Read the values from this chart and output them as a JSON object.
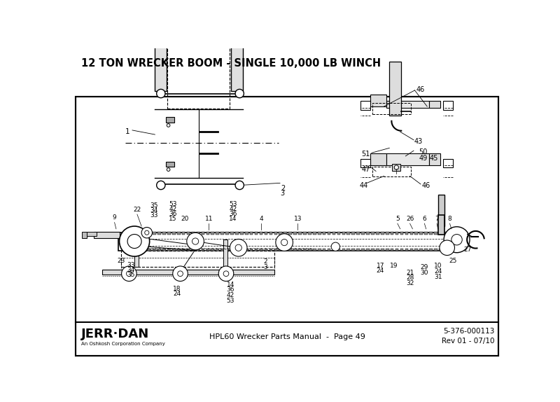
{
  "title": "12 TON WRECKER BOOM - SINGLE 10,000 LB WINCH",
  "bg_color": "#ffffff",
  "footer_center": "HPL60 Wrecker Parts Manual  -  Page 49",
  "footer_right_line1": "5-376-000113",
  "footer_right_line2": "Rev 01 - 07/10"
}
